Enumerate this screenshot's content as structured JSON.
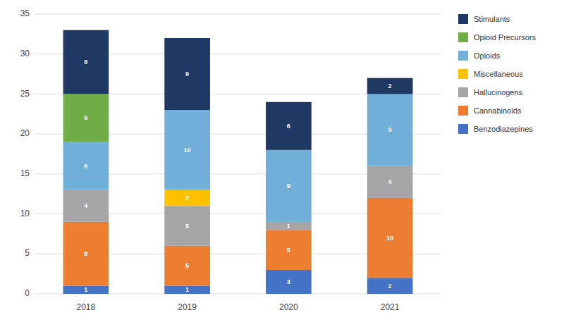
{
  "chart_data": {
    "type": "bar",
    "stacked": true,
    "categories": [
      "2018",
      "2019",
      "2020",
      "2021"
    ],
    "series": [
      {
        "name": "Benzodiazepines",
        "color": "#4472c4",
        "values": [
          1,
          1,
          3,
          2
        ]
      },
      {
        "name": "Cannabinoids",
        "color": "#ed7d31",
        "values": [
          8,
          5,
          5,
          10
        ]
      },
      {
        "name": "Hallucinogens",
        "color": "#a5a5a5",
        "values": [
          4,
          5,
          1,
          4
        ]
      },
      {
        "name": "Miscellaneous",
        "color": "#ffc000",
        "values": [
          0,
          2,
          0,
          0
        ]
      },
      {
        "name": "Opioids",
        "color": "#70b0d8",
        "values": [
          6,
          10,
          9,
          9
        ]
      },
      {
        "name": "Opioid Precursors",
        "color": "#70ad47",
        "values": [
          6,
          0,
          0,
          0
        ]
      },
      {
        "name": "Stimulants",
        "color": "#1f3864",
        "values": [
          8,
          9,
          6,
          2
        ]
      }
    ],
    "ylim": [
      0,
      35
    ],
    "yticks": [
      0,
      5,
      10,
      15,
      20,
      25,
      30,
      35
    ],
    "grid": true,
    "legend": "right",
    "data_labels": true
  }
}
